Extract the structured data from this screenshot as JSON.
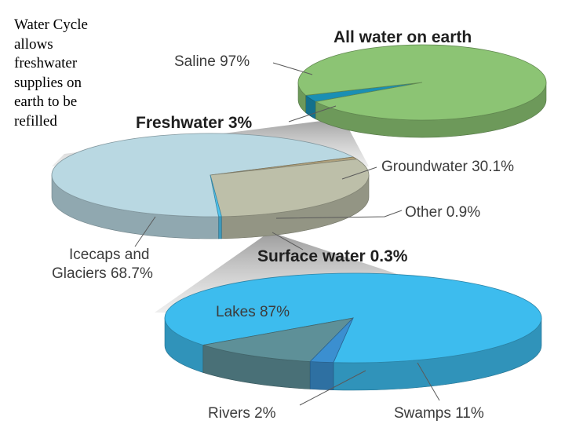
{
  "intro_text": [
    "Water Cycle",
    "allows",
    "freshwater",
    "supplies on",
    "earth to be",
    "refilled"
  ],
  "chart_data": [
    {
      "type": "pie",
      "title": "All water on earth",
      "categories": [
        "Saline",
        "Freshwater"
      ],
      "values": [
        97,
        3
      ],
      "labels": [
        "Saline 97%",
        "Freshwater 3%"
      ],
      "colors": [
        "#8cc474",
        "#1a8fb4"
      ]
    },
    {
      "type": "pie",
      "title": "Freshwater 3%",
      "categories": [
        "Icecaps and Glaciers",
        "Groundwater",
        "Surface water",
        "Other"
      ],
      "values": [
        68.7,
        30.1,
        0.3,
        0.9
      ],
      "labels": [
        "Icecaps and Glaciers 68.7%",
        "Groundwater 30.1%",
        "Surface water 0.3%",
        "Other 0.9%"
      ],
      "colors": [
        "#b9d8e2",
        "#bdbfa9",
        "#4fc3ee",
        "#b0a17c"
      ]
    },
    {
      "type": "pie",
      "title": "Surface water 0.3%",
      "categories": [
        "Lakes",
        "Swamps",
        "Rivers"
      ],
      "values": [
        87,
        11,
        2
      ],
      "labels": [
        "Lakes 87%",
        "Swamps 11%",
        "Rivers 2%"
      ],
      "colors": [
        "#3dbcee",
        "#5e9098",
        "#3b8fd0"
      ]
    }
  ]
}
